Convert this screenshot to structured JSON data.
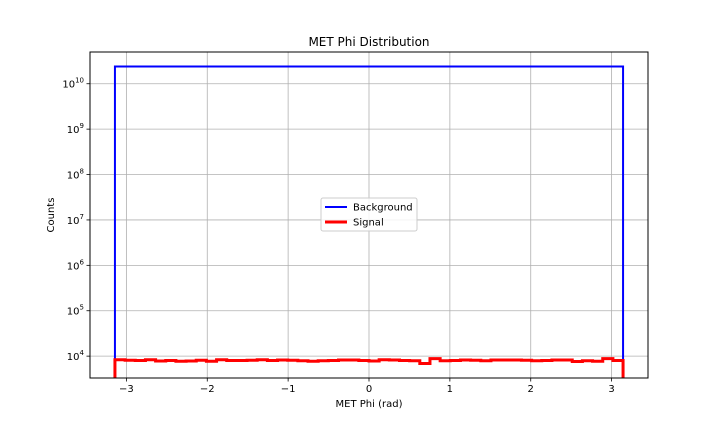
{
  "chart_data": {
    "type": "line",
    "title": "MET Phi Distribution",
    "xlabel": "MET Phi (rad)",
    "ylabel": "Counts",
    "xlim": [
      -3.45,
      3.45
    ],
    "ylim": [
      3300,
      50000000000
    ],
    "yscale": "log",
    "grid": true,
    "legend_position": "center",
    "x_ticks": [
      -3,
      -2,
      -1,
      0,
      1,
      2,
      3
    ],
    "x_tick_labels": [
      "−3",
      "−2",
      "−1",
      "0",
      "1",
      "2",
      "3"
    ],
    "y_ticks": [
      10000,
      100000,
      1000000,
      10000000,
      100000000,
      1000000000,
      10000000000
    ],
    "y_tick_labels": [
      {
        "base": "10",
        "exp": "4"
      },
      {
        "base": "10",
        "exp": "5"
      },
      {
        "base": "10",
        "exp": "6"
      },
      {
        "base": "10",
        "exp": "7"
      },
      {
        "base": "10",
        "exp": "8"
      },
      {
        "base": "10",
        "exp": "9"
      },
      {
        "base": "10",
        "exp": "10"
      }
    ],
    "bin_range": [
      -3.1416,
      3.1416
    ],
    "series": [
      {
        "name": "Background",
        "color": "#0000ff",
        "values": [
          24000000000,
          24000000000,
          24000000000,
          24000000000,
          24000000000,
          24000000000,
          24000000000,
          24000000000,
          24000000000,
          24000000000,
          24000000000,
          24000000000,
          24000000000,
          24000000000,
          24000000000,
          24000000000,
          24000000000,
          24000000000,
          24000000000,
          24000000000,
          24000000000,
          24000000000,
          24000000000,
          24000000000,
          24000000000,
          24000000000,
          24000000000,
          24000000000,
          24000000000,
          24000000000,
          24000000000,
          24000000000,
          24000000000,
          24000000000,
          24000000000,
          24000000000,
          24000000000,
          24000000000,
          24000000000,
          24000000000,
          24000000000,
          24000000000,
          24000000000,
          24000000000,
          24000000000,
          24000000000,
          24000000000,
          24000000000,
          24000000000,
          24000000000
        ]
      },
      {
        "name": "Signal",
        "color": "#ff0000",
        "values": [
          8300,
          8100,
          8000,
          8300,
          7800,
          8000,
          7700,
          7800,
          8100,
          7700,
          8300,
          8000,
          8000,
          8100,
          8300,
          8000,
          8200,
          8100,
          7900,
          7700,
          7900,
          8000,
          8200,
          8200,
          8000,
          7800,
          8300,
          8200,
          8000,
          7900,
          6900,
          8800,
          7900,
          8000,
          8200,
          8100,
          7900,
          8200,
          8200,
          8200,
          8100,
          7900,
          8000,
          8200,
          8200,
          7600,
          7900,
          7700,
          8800,
          8000
        ]
      }
    ]
  }
}
